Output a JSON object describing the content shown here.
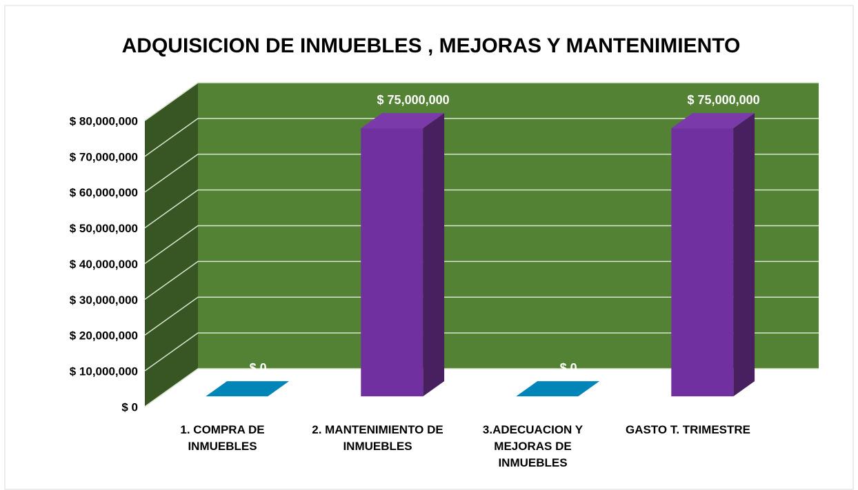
{
  "chart_data": {
    "type": "bar3d",
    "title": "ADQUISICION DE INMUEBLES , MEJORAS Y MANTENIMIENTO",
    "categories": [
      "1. COMPRA DE INMUEBLES",
      "2. MANTENIMIENTO DE INMUEBLES",
      "3.ADECUACION Y MEJORAS DE INMUEBLES",
      "GASTO T. TRIMESTRE"
    ],
    "values": [
      0,
      75000000,
      0,
      75000000
    ],
    "value_labels": [
      "$ 0",
      "$ 75,000,000",
      "$ 0",
      "$ 75,000,000"
    ],
    "colors": [
      "#0085b8",
      "#7030a0",
      "#0085b8",
      "#7030a0"
    ],
    "ylim": [
      0,
      80000000
    ],
    "yticks": [
      {
        "value": 0,
        "label": "$ 0"
      },
      {
        "value": 10000000,
        "label": "$ 10,000,000"
      },
      {
        "value": 20000000,
        "label": "$ 20,000,000"
      },
      {
        "value": 30000000,
        "label": "$ 30,000,000"
      },
      {
        "value": 40000000,
        "label": "$ 40,000,000"
      },
      {
        "value": 50000000,
        "label": "$ 50,000,000"
      },
      {
        "value": 60000000,
        "label": "$ 60,000,000"
      },
      {
        "value": 70000000,
        "label": "$ 70,000,000"
      },
      {
        "value": 80000000,
        "label": "$ 80,000,000"
      }
    ],
    "grid": true
  }
}
